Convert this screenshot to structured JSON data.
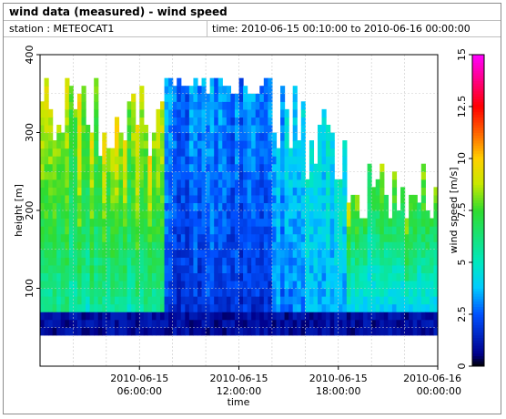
{
  "header": {
    "title": "wind data (measured) - wind speed",
    "station": "station : METEOCAT1",
    "time_range": "time: 2010-06-15 00:10:00 to 2010-06-16 00:00:00"
  },
  "chart_data": {
    "type": "heatmap",
    "xlabel": "time",
    "ylabel": "height [m]",
    "colorbar_label": "wind speed [m/s]",
    "xlim_hours": [
      0,
      24
    ],
    "ylim": [
      0,
      400
    ],
    "x_ticks": [
      {
        "hour": 6,
        "line1": "2010-06-15",
        "line2": "06:00:00"
      },
      {
        "hour": 12,
        "line1": "2010-06-15",
        "line2": "12:00:00"
      },
      {
        "hour": 18,
        "line1": "2010-06-15",
        "line2": "18:00:00"
      },
      {
        "hour": 24,
        "line1": "2010-06-16",
        "line2": "00:00:00"
      }
    ],
    "y_ticks": [
      100,
      200,
      300,
      400
    ],
    "colorbar_range": [
      0,
      15
    ],
    "colorbar_ticks": [
      0,
      2.5,
      5,
      7.5,
      10,
      12.5,
      15
    ],
    "colorbar_tick_labels": [
      "0",
      "2.5",
      "5",
      "7.5",
      "10",
      "12.5",
      "15"
    ],
    "colormap_stops": [
      {
        "v": 0,
        "c": "#000000"
      },
      {
        "v": 0.6,
        "c": "#00008c"
      },
      {
        "v": 2.5,
        "c": "#0050ff"
      },
      {
        "v": 3.8,
        "c": "#00ccff"
      },
      {
        "v": 5,
        "c": "#00e8c0"
      },
      {
        "v": 7.5,
        "c": "#30dc30"
      },
      {
        "v": 8.8,
        "c": "#c8e800"
      },
      {
        "v": 10,
        "c": "#ffd000"
      },
      {
        "v": 11.3,
        "c": "#ff6000"
      },
      {
        "v": 12.5,
        "c": "#ff0000"
      },
      {
        "v": 15,
        "c": "#ff00ff"
      }
    ],
    "time_step_hours": 0.25,
    "height_step_m": 10,
    "grid": true,
    "profile_segments": [
      {
        "hour_start": 0,
        "hour_end": 7.5,
        "top_m": [
          260,
          370
        ],
        "low_speed_m_s": [
          4.0,
          5.5
        ],
        "high_speed_m_s": [
          7.5,
          10.0
        ]
      },
      {
        "hour_start": 7.5,
        "hour_end": 14,
        "top_m": [
          345,
          370
        ],
        "low_speed_m_s": [
          1.0,
          2.0
        ],
        "high_speed_m_s": [
          2.5,
          3.8
        ]
      },
      {
        "hour_start": 14,
        "hour_end": 16,
        "top_m": [
          270,
          360
        ],
        "low_speed_m_s": [
          2.0,
          3.0
        ],
        "high_speed_m_s": [
          3.2,
          4.6
        ]
      },
      {
        "hour_start": 16,
        "hour_end": 18.5,
        "top_m": [
          230,
          330
        ],
        "low_speed_m_s": [
          2.5,
          3.5
        ],
        "high_speed_m_s": [
          4.0,
          5.2
        ]
      },
      {
        "hour_start": 18.5,
        "hour_end": 24,
        "top_m": [
          180,
          265
        ],
        "low_speed_m_s": [
          2.0,
          3.0
        ],
        "high_speed_m_s": [
          6.5,
          9.0
        ]
      }
    ]
  }
}
